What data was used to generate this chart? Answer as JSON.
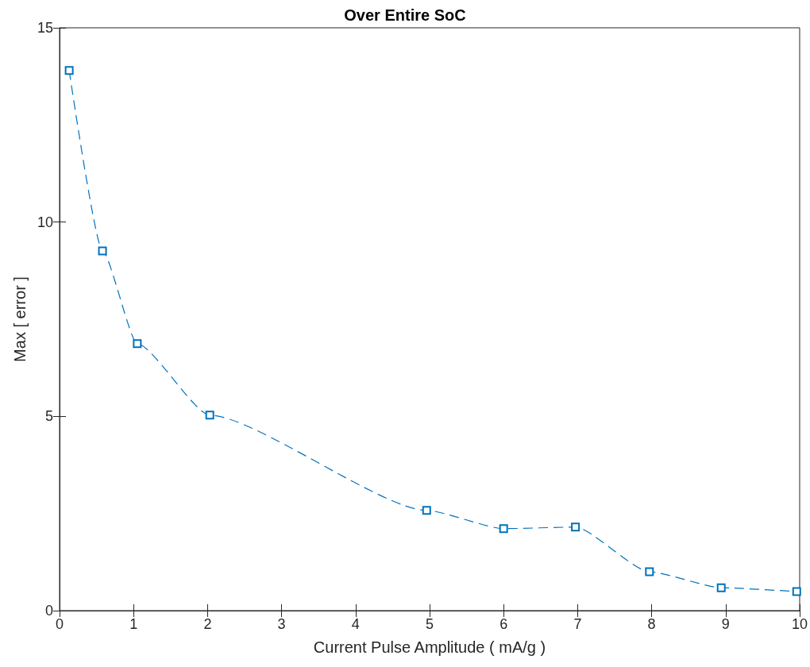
{
  "chart_data": {
    "type": "line",
    "title": "Over Entire SoC",
    "xlabel": "Current Pulse Amplitude ( mA/g )",
    "ylabel": "Max [ error ]",
    "x": [
      0.13,
      0.58,
      1.05,
      2.03,
      4.96,
      6.0,
      6.97,
      7.97,
      8.94,
      9.96
    ],
    "series": [
      {
        "color": "#0072bd",
        "values": [
          13.9,
          9.26,
          6.87,
          5.03,
          2.58,
          2.11,
          2.15,
          1.0,
          0.59,
          0.49
        ]
      }
    ],
    "xlim": [
      0,
      10
    ],
    "xticks": [
      0,
      1,
      2,
      3,
      4,
      5,
      6,
      7,
      8,
      9,
      10
    ],
    "ylim": [
      0,
      15
    ],
    "yticks": [
      0,
      5,
      10,
      15
    ],
    "grid": false,
    "marker": "square",
    "line_style": "dashed"
  }
}
